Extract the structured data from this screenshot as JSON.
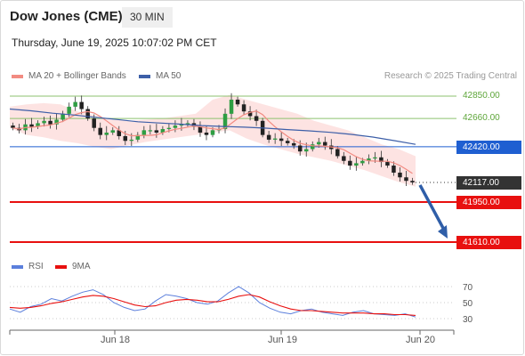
{
  "header": {
    "instrument": "Dow Jones (CME)",
    "timeframe": "30 MIN",
    "datetime": "Thursday, June 19, 2025 10:07:02 PM CET"
  },
  "legend": {
    "ma20_bb": "MA 20 + Bollinger Bands",
    "ma50": "MA 50",
    "rsi": "RSI",
    "nine_ma": "9MA"
  },
  "credit": "Research © 2025 Trading Central",
  "colors": {
    "ma20": "#f28b82",
    "bollinger_fill": "#fde0df",
    "ma50": "#3d5fa8",
    "resistance": "#8dc26f",
    "pivot": "#1f5fd1",
    "support": "#e8100f",
    "last_price": "#333333",
    "candle_up": "#2e9e43",
    "candle_down": "#222222",
    "rsi": "#5b7fdc",
    "rsi_ma": "#e8100f",
    "arrow": "#2f5ea8"
  },
  "chart_data": [
    {
      "type": "candlestick",
      "ylim": [
        41550,
        42950
      ],
      "x_labels": [
        "Jun 18",
        "Jun 19",
        "Jun 20"
      ],
      "levels": [
        {
          "label": "42850.00",
          "value": 42850,
          "kind": "resistance"
        },
        {
          "label": "42660.00",
          "value": 42660,
          "kind": "resistance"
        },
        {
          "label": "42420.00",
          "value": 42420,
          "kind": "pivot"
        },
        {
          "label": "42117.00",
          "value": 42117,
          "kind": "last_price"
        },
        {
          "label": "41950.00",
          "value": 41950,
          "kind": "support"
        },
        {
          "label": "41610.00",
          "value": 41610,
          "kind": "support"
        }
      ],
      "close_path": [
        42580,
        42560,
        42610,
        42590,
        42620,
        42640,
        42610,
        42650,
        42700,
        42760,
        42800,
        42740,
        42660,
        42580,
        42520,
        42540,
        42560,
        42510,
        42470,
        42480,
        42520,
        42560,
        42560,
        42540,
        42570,
        42580,
        42600,
        42610,
        42620,
        42590,
        42540,
        42520,
        42560,
        42570,
        42700,
        42820,
        42780,
        42720,
        42680,
        42640,
        42520,
        42480,
        42490,
        42470,
        42450,
        42430,
        42380,
        42400,
        42440,
        42460,
        42430,
        42400,
        42340,
        42300,
        42260,
        42280,
        42300,
        42320,
        42330,
        42290,
        42260,
        42200,
        42160,
        42130,
        42117
      ],
      "ma50_path": [
        42740,
        42725,
        42705,
        42690,
        42670,
        42652,
        42632,
        42622,
        42612,
        42600,
        42592,
        42586,
        42578,
        42566,
        42555,
        42542,
        42525,
        42502,
        42472,
        42440
      ],
      "bollinger_upper": [
        42760,
        42780,
        42790,
        42780,
        42720,
        42690,
        42650,
        42640,
        42650,
        42660,
        42680,
        42700,
        42820,
        42860,
        42820,
        42780,
        42740,
        42700,
        42640,
        42600,
        42560,
        42500,
        42440,
        42400,
        42340
      ],
      "bollinger_lower": [
        42580,
        42520,
        42500,
        42470,
        42450,
        42420,
        42400,
        42430,
        42460,
        42480,
        42500,
        42520,
        42540,
        42560,
        42490,
        42440,
        42400,
        42360,
        42330,
        42300,
        42260,
        42220,
        42170,
        42120,
        42080
      ],
      "arrow": {
        "from": 42117,
        "to": 41610
      }
    },
    {
      "type": "line",
      "ylim": [
        20,
        80
      ],
      "y_ticks": [
        "70",
        "50",
        "30"
      ],
      "series": [
        {
          "name": "RSI",
          "values": [
            42,
            38,
            45,
            48,
            55,
            52,
            58,
            63,
            66,
            60,
            50,
            44,
            40,
            42,
            52,
            60,
            58,
            55,
            50,
            48,
            52,
            62,
            70,
            62,
            50,
            43,
            38,
            36,
            40,
            42,
            38,
            36,
            34,
            38,
            40,
            36,
            35,
            34,
            36,
            32
          ]
        },
        {
          "name": "9MA",
          "values": [
            44,
            43,
            44,
            46,
            49,
            51,
            54,
            57,
            59,
            58,
            55,
            51,
            47,
            45,
            46,
            50,
            53,
            54,
            53,
            51,
            51,
            54,
            58,
            60,
            57,
            51,
            46,
            42,
            40,
            40,
            39,
            38,
            37,
            37,
            37,
            36,
            36,
            35,
            35,
            34
          ]
        }
      ]
    }
  ]
}
